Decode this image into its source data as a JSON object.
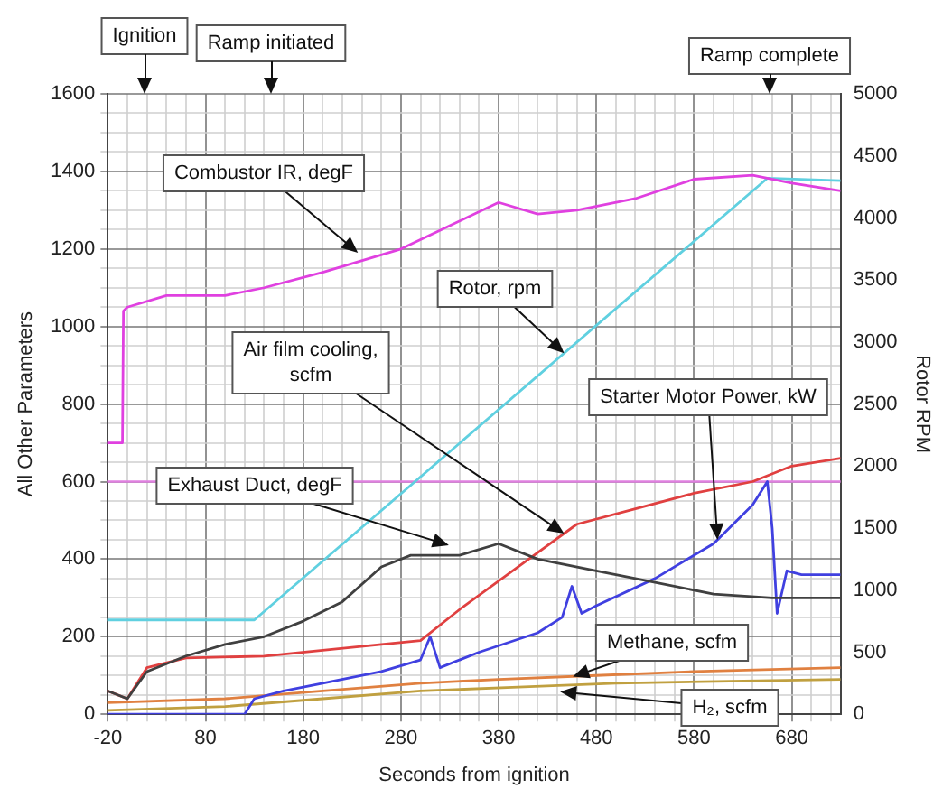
{
  "chart_data": {
    "type": "line",
    "xlabel": "Seconds from ignition",
    "ylabel": "All Other Parameters",
    "y2label": "Rotor RPM",
    "xlim": [
      -20,
      730
    ],
    "xticks": [
      -20,
      {
        "value": 0,
        "label": null
      },
      {
        "value": 20,
        "label": null
      },
      {
        "value": 40,
        "label": null
      },
      {
        "value": 60,
        "label": null
      },
      80,
      {
        "value": 100,
        "label": null
      },
      {
        "value": 120,
        "label": null
      },
      {
        "value": 140,
        "label": null
      },
      {
        "value": 160,
        "label": null
      },
      180,
      {
        "value": 200,
        "label": null
      },
      {
        "value": 220,
        "label": null
      },
      {
        "value": 240,
        "label": null
      },
      {
        "value": 260,
        "label": null
      },
      280,
      {
        "value": 300,
        "label": null
      },
      {
        "value": 320,
        "label": null
      },
      {
        "value": 340,
        "label": null
      },
      {
        "value": 360,
        "label": null
      },
      380,
      {
        "value": 400,
        "label": null
      },
      {
        "value": 420,
        "label": null
      },
      {
        "value": 440,
        "label": null
      },
      {
        "value": 460,
        "label": null
      },
      480,
      {
        "value": 500,
        "label": null
      },
      {
        "value": 520,
        "label": null
      },
      {
        "value": 540,
        "label": null
      },
      {
        "value": 560,
        "label": null
      },
      580,
      {
        "value": 600,
        "label": null
      },
      {
        "value": 620,
        "label": null
      },
      {
        "value": 640,
        "label": null
      },
      {
        "value": 660,
        "label": null
      },
      680,
      {
        "value": 700,
        "label": null
      },
      {
        "value": 720,
        "label": null
      }
    ],
    "ylim": [
      0,
      1600
    ],
    "yticks": [
      0,
      {
        "value": 50,
        "label": null
      },
      {
        "value": 100,
        "label": null
      },
      {
        "value": 150,
        "label": null
      },
      200,
      {
        "value": 250,
        "label": null
      },
      {
        "value": 300,
        "label": null
      },
      {
        "value": 350,
        "label": null
      },
      400,
      {
        "value": 450,
        "label": null
      },
      {
        "value": 500,
        "label": null
      },
      {
        "value": 550,
        "label": null
      },
      600,
      {
        "value": 650,
        "label": null
      },
      {
        "value": 700,
        "label": null
      },
      {
        "value": 750,
        "label": null
      },
      800,
      {
        "value": 850,
        "label": null
      },
      {
        "value": 900,
        "label": null
      },
      {
        "value": 950,
        "label": null
      },
      1000,
      {
        "value": 1050,
        "label": null
      },
      {
        "value": 1100,
        "label": null
      },
      {
        "value": 1150,
        "label": null
      },
      1200,
      {
        "value": 1250,
        "label": null
      },
      {
        "value": 1300,
        "label": null
      },
      {
        "value": 1350,
        "label": null
      },
      1400,
      {
        "value": 1450,
        "label": null
      },
      {
        "value": 1500,
        "label": null
      },
      {
        "value": 1550,
        "label": null
      },
      1600
    ],
    "y2lim": [
      0,
      5000
    ],
    "y2ticks": [
      0,
      500,
      1000,
      1500,
      2000,
      2500,
      3000,
      3500,
      4000,
      4500,
      5000
    ],
    "grid": true,
    "legend": false,
    "marker": "none",
    "line_style": "solid",
    "ref_lines": [
      {
        "axis": "y",
        "value": 600,
        "color": "#e080e0"
      }
    ],
    "series": [
      {
        "color": "#e040e0",
        "x": [
          -20,
          -5,
          -4,
          0,
          40,
          100,
          140,
          200,
          280,
          330,
          380,
          420,
          460,
          520,
          580,
          640,
          680,
          730
        ],
        "values": [
          700,
          700,
          1040,
          1050,
          1080,
          1080,
          1100,
          1140,
          1200,
          1260,
          1320,
          1290,
          1300,
          1330,
          1380,
          1390,
          1370,
          1350
        ]
      },
      {
        "color": "#60d0e0",
        "axis": "y2",
        "x": [
          -20,
          130,
          655,
          730
        ],
        "values": [
          760,
          760,
          4320,
          4300
        ]
      },
      {
        "color": "#404040",
        "x": [
          -20,
          0,
          20,
          60,
          100,
          140,
          180,
          220,
          260,
          290,
          340,
          380,
          420,
          480,
          540,
          600,
          660,
          730
        ],
        "values": [
          60,
          40,
          110,
          150,
          180,
          200,
          240,
          290,
          380,
          410,
          410,
          440,
          400,
          370,
          340,
          310,
          300,
          300
        ]
      },
      {
        "color": "#e04040",
        "x": [
          -20,
          0,
          20,
          60,
          140,
          200,
          260,
          300,
          340,
          400,
          460,
          520,
          580,
          640,
          680,
          730
        ],
        "values": [
          60,
          40,
          120,
          145,
          150,
          165,
          180,
          190,
          270,
          380,
          490,
          530,
          570,
          600,
          640,
          660
        ]
      },
      {
        "color": "#4040e0",
        "x": [
          -20,
          120,
          130,
          160,
          200,
          260,
          300,
          310,
          320,
          360,
          420,
          445,
          455,
          465,
          480,
          540,
          600,
          640,
          655,
          660,
          665,
          675,
          690,
          730
        ],
        "values": [
          0,
          0,
          40,
          60,
          80,
          110,
          140,
          200,
          120,
          160,
          210,
          250,
          330,
          260,
          280,
          350,
          440,
          540,
          600,
          480,
          260,
          370,
          360,
          360
        ]
      },
      {
        "color": "#e08040",
        "x": [
          -20,
          100,
          200,
          300,
          380,
          480,
          580,
          730
        ],
        "values": [
          30,
          40,
          60,
          80,
          90,
          100,
          110,
          120
        ]
      },
      {
        "color": "#c0a040",
        "x": [
          -20,
          100,
          200,
          300,
          400,
          500,
          730
        ],
        "values": [
          10,
          20,
          40,
          60,
          70,
          80,
          90
        ]
      }
    ],
    "annotations": [
      "Ignition",
      "Ramp initiated",
      "Ramp complete",
      {
        "text": "Combustor IR, degF",
        "x": 236,
        "y": 1190
      },
      {
        "text": "Rotor, rpm",
        "x": 447,
        "y": 931
      },
      {
        "text": "Air film cooling, scfm",
        "x": 447,
        "y": 466
      },
      {
        "text": "Starter Motor Power, kW",
        "x": 604,
        "y": 450
      },
      {
        "text": "Exhaust Duct, degF",
        "x": 329,
        "y": 436
      },
      {
        "text": "Methane, scfm",
        "x": 456,
        "y": 97
      },
      {
        "text": "H₂, scfm",
        "x": 443,
        "y": 58
      }
    ]
  }
}
